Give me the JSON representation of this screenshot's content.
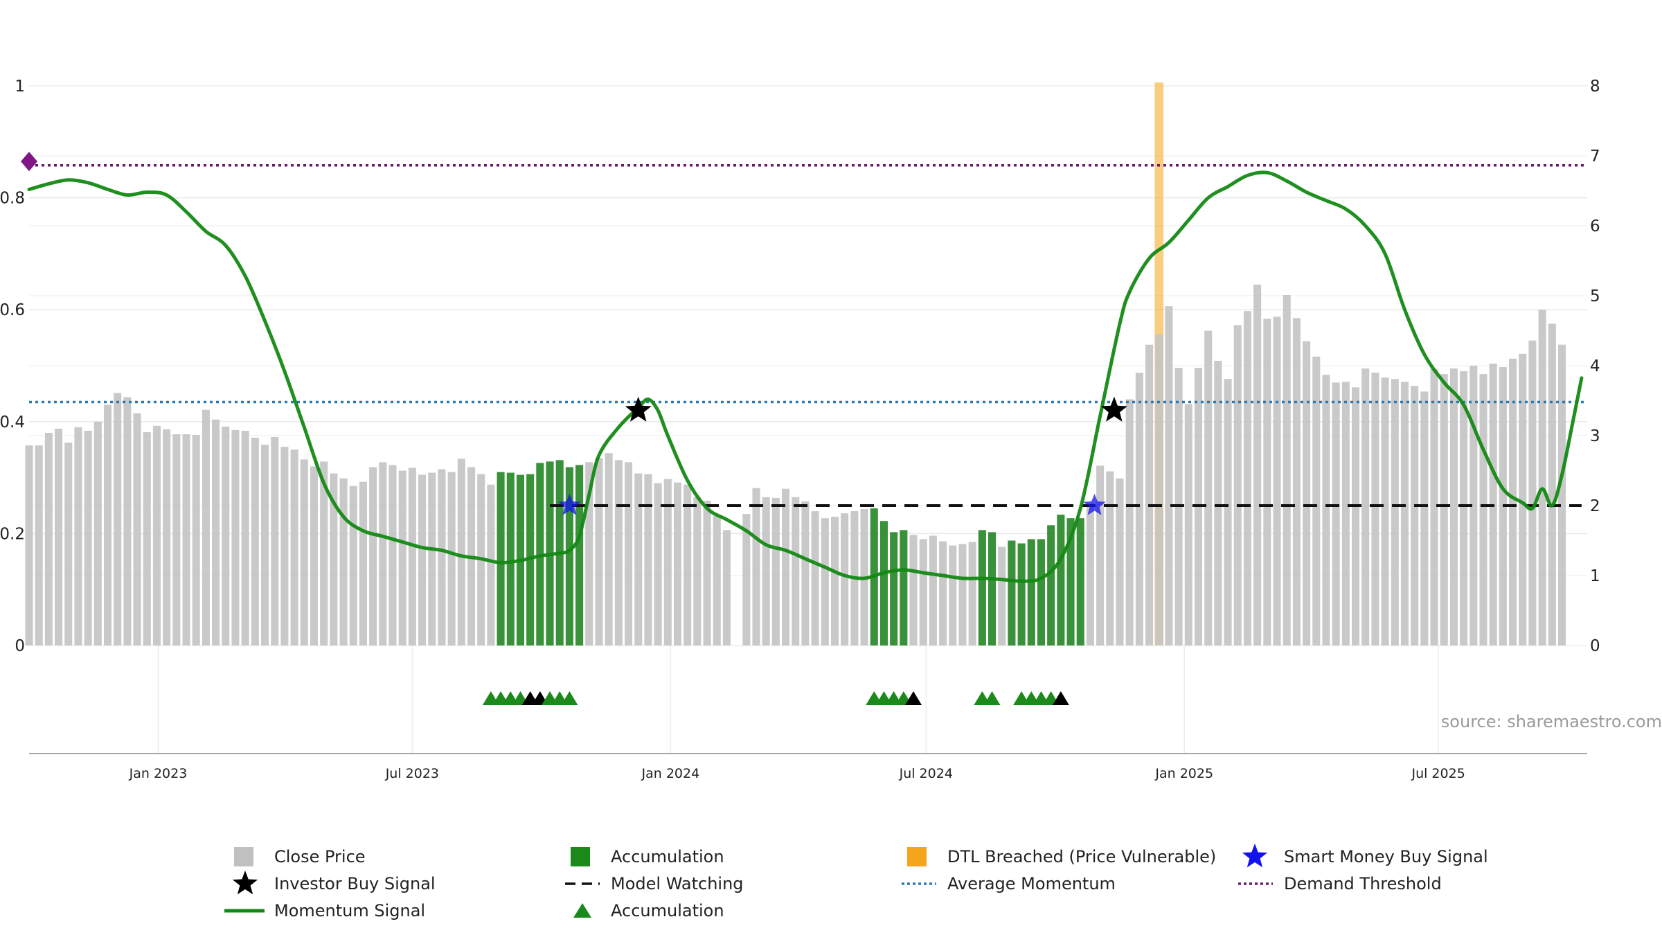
{
  "chart_data": {
    "type": "bar",
    "x_axis": {
      "ticks": [
        "Jan 2023",
        "Jul 2023",
        "Jan 2024",
        "Jul 2024",
        "Jan 2025",
        "Jul 2025"
      ],
      "range": [
        "2022-10-01",
        "2025-10-15"
      ]
    },
    "y_left": {
      "ticks": [
        "0",
        "0.2",
        "0.4",
        "0.6",
        "0.8",
        "1"
      ],
      "range": [
        0,
        1
      ]
    },
    "y_right": {
      "ticks": [
        "0",
        "1",
        "2",
        "3",
        "4",
        "5",
        "6",
        "7",
        "8"
      ],
      "range": [
        0,
        8
      ]
    },
    "grid": true,
    "source": "source: sharemaestro.com",
    "close_price": [
      [
        "2022-10-01",
        2.86
      ],
      [
        "2022-10-08",
        2.86
      ],
      [
        "2022-10-15",
        3.04
      ],
      [
        "2022-10-22",
        3.1
      ],
      [
        "2022-10-29",
        2.9
      ],
      [
        "2022-11-05",
        3.12
      ],
      [
        "2022-11-12",
        3.07
      ],
      [
        "2022-11-19",
        3.2
      ],
      [
        "2022-11-26",
        3.44
      ],
      [
        "2022-12-03",
        3.61
      ],
      [
        "2022-12-10",
        3.55
      ],
      [
        "2022-12-17",
        3.32
      ],
      [
        "2022-12-24",
        3.05
      ],
      [
        "2022-12-31",
        3.14
      ],
      [
        "2023-01-07",
        3.09
      ],
      [
        "2023-01-14",
        3.02
      ],
      [
        "2023-01-21",
        3.02
      ],
      [
        "2023-01-28",
        3.01
      ],
      [
        "2023-02-04",
        3.37
      ],
      [
        "2023-02-11",
        3.23
      ],
      [
        "2023-02-18",
        3.13
      ],
      [
        "2023-02-25",
        3.08
      ],
      [
        "2023-03-04",
        3.07
      ],
      [
        "2023-03-11",
        2.97
      ],
      [
        "2023-03-18",
        2.87
      ],
      [
        "2023-03-25",
        2.98
      ],
      [
        "2023-04-01",
        2.84
      ],
      [
        "2023-04-08",
        2.8
      ],
      [
        "2023-04-15",
        2.66
      ],
      [
        "2023-04-22",
        2.56
      ],
      [
        "2023-04-29",
        2.63
      ],
      [
        "2023-05-06",
        2.46
      ],
      [
        "2023-05-13",
        2.39
      ],
      [
        "2023-05-20",
        2.28
      ],
      [
        "2023-05-27",
        2.34
      ],
      [
        "2023-06-03",
        2.55
      ],
      [
        "2023-06-10",
        2.62
      ],
      [
        "2023-06-17",
        2.58
      ],
      [
        "2023-06-24",
        2.5
      ],
      [
        "2023-07-01",
        2.54
      ],
      [
        "2023-07-08",
        2.44
      ],
      [
        "2023-07-15",
        2.47
      ],
      [
        "2023-07-22",
        2.52
      ],
      [
        "2023-07-29",
        2.48
      ],
      [
        "2023-08-05",
        2.67
      ],
      [
        "2023-08-12",
        2.55
      ],
      [
        "2023-08-19",
        2.45
      ],
      [
        "2023-08-26",
        2.3
      ],
      [
        "2023-09-02",
        2.48
      ],
      [
        "2023-09-09",
        2.47
      ],
      [
        "2023-09-16",
        2.44
      ],
      [
        "2023-09-23",
        2.45
      ],
      [
        "2023-09-30",
        2.61
      ],
      [
        "2023-10-07",
        2.63
      ],
      [
        "2023-10-14",
        2.65
      ],
      [
        "2023-10-21",
        2.55
      ],
      [
        "2023-10-28",
        2.58
      ],
      [
        "2023-11-04",
        2.62
      ],
      [
        "2023-11-11",
        2.68
      ],
      [
        "2023-11-18",
        2.75
      ],
      [
        "2023-11-25",
        2.65
      ],
      [
        "2023-12-02",
        2.62
      ],
      [
        "2023-12-09",
        2.46
      ],
      [
        "2023-12-16",
        2.45
      ],
      [
        "2023-12-23",
        2.32
      ],
      [
        "2023-12-30",
        2.38
      ],
      [
        "2024-01-06",
        2.33
      ],
      [
        "2024-01-13",
        2.3
      ],
      [
        "2024-01-20",
        2.12
      ],
      [
        "2024-01-27",
        2.07
      ],
      [
        "2024-02-03",
        1.85
      ],
      [
        "2024-02-10",
        1.65
      ],
      [
        "2024-02-24",
        1.88
      ],
      [
        "2024-03-02",
        2.25
      ],
      [
        "2024-03-09",
        2.12
      ],
      [
        "2024-03-16",
        2.11
      ],
      [
        "2024-03-23",
        2.24
      ],
      [
        "2024-03-30",
        2.12
      ],
      [
        "2024-04-06",
        2.06
      ],
      [
        "2024-04-13",
        1.92
      ],
      [
        "2024-04-20",
        1.82
      ],
      [
        "2024-04-27",
        1.84
      ],
      [
        "2024-05-04",
        1.89
      ],
      [
        "2024-05-11",
        1.92
      ],
      [
        "2024-05-18",
        1.95
      ],
      [
        "2024-05-25",
        1.96
      ],
      [
        "2024-06-01",
        1.78
      ],
      [
        "2024-06-08",
        1.62
      ],
      [
        "2024-06-15",
        1.65
      ],
      [
        "2024-06-22",
        1.58
      ],
      [
        "2024-06-29",
        1.52
      ],
      [
        "2024-07-06",
        1.57
      ],
      [
        "2024-07-13",
        1.49
      ],
      [
        "2024-07-20",
        1.43
      ],
      [
        "2024-07-27",
        1.45
      ],
      [
        "2024-08-03",
        1.48
      ],
      [
        "2024-08-10",
        1.65
      ],
      [
        "2024-08-17",
        1.62
      ],
      [
        "2024-08-24",
        1.41
      ],
      [
        "2024-08-31",
        1.5
      ],
      [
        "2024-09-07",
        1.46
      ],
      [
        "2024-09-14",
        1.52
      ],
      [
        "2024-09-21",
        1.52
      ],
      [
        "2024-09-28",
        1.72
      ],
      [
        "2024-10-05",
        1.87
      ],
      [
        "2024-10-12",
        1.82
      ],
      [
        "2024-10-19",
        1.82
      ],
      [
        "2024-10-26",
        2.03
      ],
      [
        "2024-11-02",
        2.57
      ],
      [
        "2024-11-09",
        2.49
      ],
      [
        "2024-11-16",
        2.39
      ],
      [
        "2024-11-23",
        3.52
      ],
      [
        "2024-11-30",
        3.9
      ],
      [
        "2024-12-07",
        4.3
      ],
      [
        "2024-12-14",
        4.45
      ],
      [
        "2024-12-21",
        4.85
      ],
      [
        "2024-12-28",
        3.97
      ],
      [
        "2025-01-04",
        3.45
      ],
      [
        "2025-01-11",
        3.97
      ],
      [
        "2025-01-18",
        4.5
      ],
      [
        "2025-01-25",
        4.07
      ],
      [
        "2025-02-01",
        3.81
      ],
      [
        "2025-02-08",
        4.58
      ],
      [
        "2025-02-15",
        4.78
      ],
      [
        "2025-02-22",
        5.16
      ],
      [
        "2025-03-01",
        4.67
      ],
      [
        "2025-03-08",
        4.7
      ],
      [
        "2025-03-15",
        5.01
      ],
      [
        "2025-03-22",
        4.68
      ],
      [
        "2025-03-29",
        4.35
      ],
      [
        "2025-04-05",
        4.13
      ],
      [
        "2025-04-12",
        3.87
      ],
      [
        "2025-04-19",
        3.76
      ],
      [
        "2025-04-26",
        3.77
      ],
      [
        "2025-05-03",
        3.69
      ],
      [
        "2025-05-10",
        3.96
      ],
      [
        "2025-05-17",
        3.9
      ],
      [
        "2025-05-24",
        3.83
      ],
      [
        "2025-05-31",
        3.81
      ],
      [
        "2025-06-07",
        3.77
      ],
      [
        "2025-06-14",
        3.71
      ],
      [
        "2025-06-21",
        3.63
      ],
      [
        "2025-06-28",
        3.95
      ],
      [
        "2025-07-05",
        3.88
      ],
      [
        "2025-07-12",
        3.96
      ],
      [
        "2025-07-19",
        3.92
      ],
      [
        "2025-07-26",
        4.0
      ],
      [
        "2025-08-02",
        3.88
      ],
      [
        "2025-08-09",
        4.03
      ],
      [
        "2025-08-16",
        3.98
      ],
      [
        "2025-08-23",
        4.1
      ],
      [
        "2025-08-30",
        4.17
      ],
      [
        "2025-09-06",
        4.36
      ],
      [
        "2025-09-13",
        4.8
      ],
      [
        "2025-09-20",
        4.6
      ],
      [
        "2025-09-27",
        4.3
      ]
    ],
    "accumulation_ranges": [
      [
        "2023-09-02",
        "2023-10-07"
      ],
      [
        "2023-10-07",
        "2023-10-28"
      ],
      [
        "2024-05-25",
        "2024-06-15"
      ],
      [
        "2024-08-10",
        "2024-08-17"
      ],
      [
        "2024-08-31",
        "2024-10-19"
      ]
    ],
    "momentum_signal": [
      [
        "2022-10-01",
        0.815
      ],
      [
        "2022-10-15",
        0.825
      ],
      [
        "2022-10-29",
        0.832
      ],
      [
        "2022-11-12",
        0.827
      ],
      [
        "2022-11-26",
        0.815
      ],
      [
        "2022-12-10",
        0.805
      ],
      [
        "2022-12-24",
        0.81
      ],
      [
        "2023-01-07",
        0.805
      ],
      [
        "2023-01-21",
        0.775
      ],
      [
        "2023-02-04",
        0.74
      ],
      [
        "2023-02-18",
        0.715
      ],
      [
        "2023-03-04",
        0.66
      ],
      [
        "2023-03-18",
        0.58
      ],
      [
        "2023-04-01",
        0.49
      ],
      [
        "2023-04-15",
        0.39
      ],
      [
        "2023-04-29",
        0.29
      ],
      [
        "2023-05-13",
        0.23
      ],
      [
        "2023-05-27",
        0.205
      ],
      [
        "2023-06-10",
        0.195
      ],
      [
        "2023-06-24",
        0.185
      ],
      [
        "2023-07-08",
        0.175
      ],
      [
        "2023-07-22",
        0.17
      ],
      [
        "2023-08-05",
        0.16
      ],
      [
        "2023-08-19",
        0.155
      ],
      [
        "2023-09-02",
        0.148
      ],
      [
        "2023-09-16",
        0.152
      ],
      [
        "2023-09-30",
        0.16
      ],
      [
        "2023-10-14",
        0.165
      ],
      [
        "2023-10-21",
        0.17
      ],
      [
        "2023-10-28",
        0.195
      ],
      [
        "2023-11-04",
        0.27
      ],
      [
        "2023-11-11",
        0.34
      ],
      [
        "2023-11-25",
        0.39
      ],
      [
        "2023-12-09",
        0.425
      ],
      [
        "2023-12-16",
        0.44
      ],
      [
        "2023-12-23",
        0.42
      ],
      [
        "2023-12-30",
        0.375
      ],
      [
        "2024-01-13",
        0.295
      ],
      [
        "2024-01-27",
        0.245
      ],
      [
        "2024-02-10",
        0.225
      ],
      [
        "2024-02-24",
        0.205
      ],
      [
        "2024-03-09",
        0.18
      ],
      [
        "2024-03-23",
        0.17
      ],
      [
        "2024-04-06",
        0.155
      ],
      [
        "2024-04-20",
        0.14
      ],
      [
        "2024-05-04",
        0.125
      ],
      [
        "2024-05-18",
        0.12
      ],
      [
        "2024-06-01",
        0.13
      ],
      [
        "2024-06-15",
        0.135
      ],
      [
        "2024-06-29",
        0.13
      ],
      [
        "2024-07-13",
        0.125
      ],
      [
        "2024-07-27",
        0.12
      ],
      [
        "2024-08-10",
        0.12
      ],
      [
        "2024-08-24",
        0.118
      ],
      [
        "2024-09-07",
        0.115
      ],
      [
        "2024-09-21",
        0.12
      ],
      [
        "2024-10-05",
        0.155
      ],
      [
        "2024-10-19",
        0.245
      ],
      [
        "2024-11-02",
        0.41
      ],
      [
        "2024-11-16",
        0.575
      ],
      [
        "2024-11-23",
        0.632
      ],
      [
        "2024-12-07",
        0.692
      ],
      [
        "2024-12-21",
        0.72
      ],
      [
        "2025-01-04",
        0.76
      ],
      [
        "2025-01-18",
        0.8
      ],
      [
        "2025-02-01",
        0.82
      ],
      [
        "2025-02-15",
        0.84
      ],
      [
        "2025-03-01",
        0.845
      ],
      [
        "2025-03-15",
        0.83
      ],
      [
        "2025-03-29",
        0.81
      ],
      [
        "2025-04-12",
        0.795
      ],
      [
        "2025-04-26",
        0.78
      ],
      [
        "2025-05-10",
        0.75
      ],
      [
        "2025-05-24",
        0.7
      ],
      [
        "2025-06-07",
        0.6
      ],
      [
        "2025-06-21",
        0.52
      ],
      [
        "2025-07-05",
        0.47
      ],
      [
        "2025-07-19",
        0.43
      ],
      [
        "2025-08-02",
        0.35
      ],
      [
        "2025-08-16",
        0.28
      ],
      [
        "2025-08-30",
        0.255
      ],
      [
        "2025-09-06",
        0.245
      ],
      [
        "2025-09-13",
        0.28
      ],
      [
        "2025-09-20",
        0.25
      ],
      [
        "2025-09-27",
        0.305
      ],
      [
        "2025-10-04",
        0.39
      ],
      [
        "2025-10-11",
        0.478
      ]
    ],
    "average_momentum": 0.435,
    "demand_threshold": 0.858,
    "model_watching": {
      "from": "2023-10-07",
      "to": "2025-10-11",
      "value": 0.25
    },
    "dtl_breached": [
      "2024-12-14"
    ],
    "investor_buy_signals": [
      {
        "x": "2023-12-09",
        "y": 0.42
      },
      {
        "x": "2024-11-12",
        "y": 0.42
      }
    ],
    "smart_money_buy_signals": [
      {
        "x": "2023-10-21",
        "y": 0.25
      },
      {
        "x": "2024-10-29",
        "y": 0.25
      }
    ],
    "start_marker": {
      "x": "2022-10-01",
      "y": 0.865
    },
    "accumulation_triangles": [
      [
        "2023-08-26",
        "green"
      ],
      [
        "2023-09-02",
        "green"
      ],
      [
        "2023-09-09",
        "green"
      ],
      [
        "2023-09-16",
        "green"
      ],
      [
        "2023-09-23",
        "black"
      ],
      [
        "2023-09-30",
        "black"
      ],
      [
        "2023-10-07",
        "green"
      ],
      [
        "2023-10-14",
        "green"
      ],
      [
        "2023-10-21",
        "green"
      ],
      [
        "2024-05-25",
        "green"
      ],
      [
        "2024-06-01",
        "green"
      ],
      [
        "2024-06-08",
        "green"
      ],
      [
        "2024-06-15",
        "green"
      ],
      [
        "2024-06-22",
        "black"
      ],
      [
        "2024-08-10",
        "green"
      ],
      [
        "2024-08-17",
        "green"
      ],
      [
        "2024-09-07",
        "green"
      ],
      [
        "2024-09-14",
        "green"
      ],
      [
        "2024-09-21",
        "green"
      ],
      [
        "2024-09-28",
        "green"
      ],
      [
        "2024-10-05",
        "black"
      ]
    ],
    "colors": {
      "close_price": "#c4c4c4",
      "accumulation": "#2e8b2e",
      "momentum": "#138913",
      "dtl": "#f5a51a",
      "smart_money": "#1212ee",
      "investor": "#000000",
      "average": "#2c78b0",
      "demand": "#6a1a6a",
      "model_watching": "#111111",
      "start_marker": "#7f1884"
    },
    "legend": [
      {
        "label": "Close Price",
        "symbol": "square",
        "color": "#c0c0c0"
      },
      {
        "label": "Accumulation",
        "symbol": "square",
        "color": "#1b8a1b"
      },
      {
        "label": "DTL Breached (Price Vulnerable)",
        "symbol": "square",
        "color": "#f5a51a"
      },
      {
        "label": "Smart Money Buy Signal",
        "symbol": "star",
        "color": "#1212ee"
      },
      {
        "label": "Investor Buy Signal",
        "symbol": "star",
        "color": "#000000"
      },
      {
        "label": "Model Watching",
        "symbol": "dash",
        "color": "#111111"
      },
      {
        "label": "Average Momentum",
        "symbol": "dot",
        "color": "#2c78b0"
      },
      {
        "label": "Demand Threshold",
        "symbol": "dot",
        "color": "#6a1a6a"
      },
      {
        "label": "Momentum Signal",
        "symbol": "line",
        "color": "#138913"
      },
      {
        "label": "Accumulation",
        "symbol": "triangle",
        "color": "#1b8a1b"
      }
    ]
  }
}
